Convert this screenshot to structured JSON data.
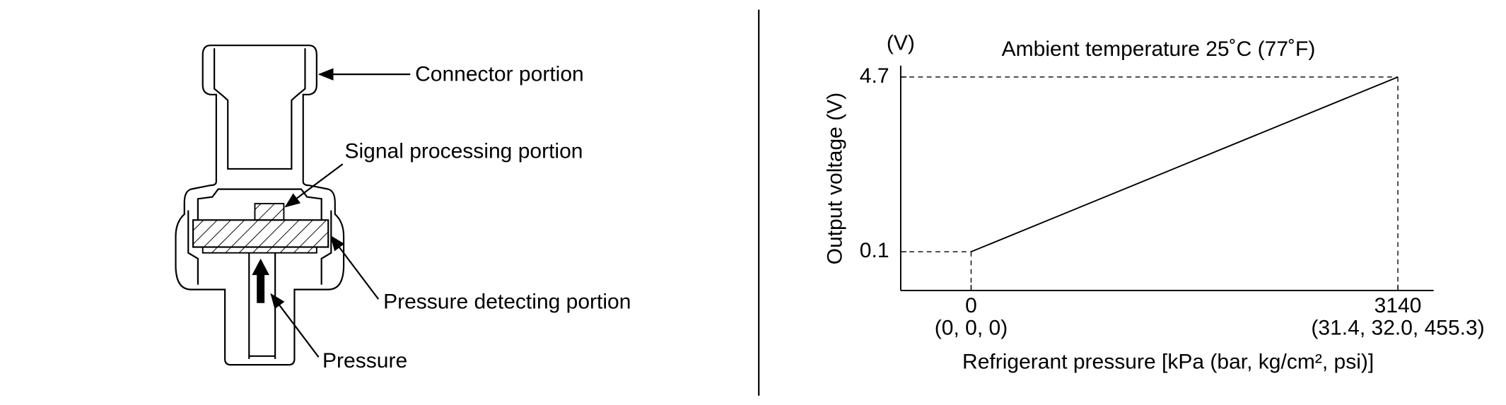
{
  "diagram": {
    "labels": [
      "Connector portion",
      "Signal processing portion",
      "Pressure detecting portion",
      "Pressure"
    ]
  },
  "chart_data": {
    "type": "line",
    "title": "Ambient temperature 25˚C (77˚F)",
    "y_unit": "(V)",
    "ylabel": "Output voltage (V)",
    "xlabel": "Refrigerant pressure [kPa (bar, kg/cm², psi)]",
    "x": [
      0,
      3140
    ],
    "x_secondary_labels": [
      "(0, 0, 0)",
      "(31.4, 32.0, 455.3)"
    ],
    "series": [
      {
        "color": "#000000",
        "values": [
          0.1,
          4.7
        ]
      }
    ],
    "xlim": [
      -518,
      3403
    ],
    "ylim": [
      -0.92,
      5.0
    ],
    "xticks": [
      0,
      3140
    ],
    "yticks": [
      0.1,
      4.7
    ]
  }
}
